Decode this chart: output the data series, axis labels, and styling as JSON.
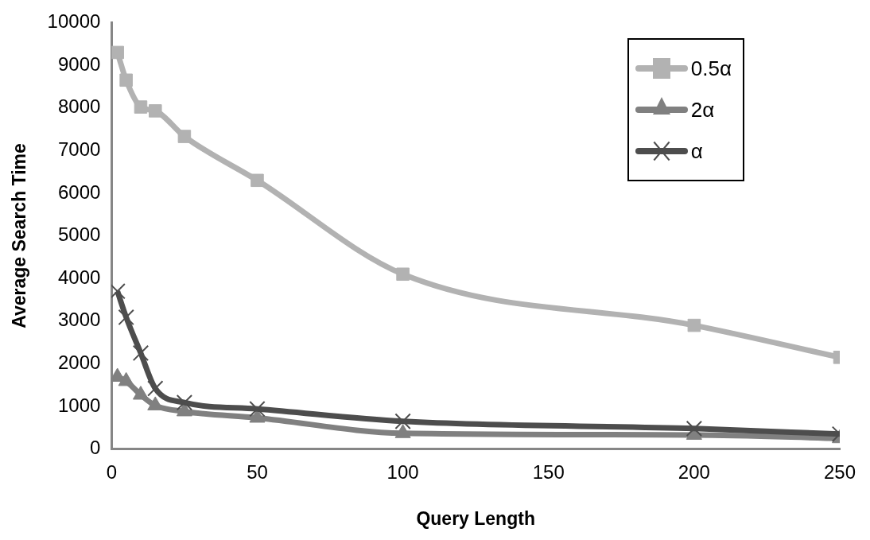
{
  "chart_data": {
    "type": "line",
    "xlabel": "Query Length",
    "ylabel": "Average Search Time",
    "x": [
      2,
      5,
      10,
      15,
      25,
      50,
      100,
      200,
      250
    ],
    "xlim": [
      0,
      250
    ],
    "xticks": [
      0,
      50,
      100,
      150,
      200,
      250
    ],
    "ylim": [
      0,
      10000
    ],
    "yticks": [
      0,
      1000,
      2000,
      3000,
      4000,
      5000,
      6000,
      7000,
      8000,
      9000,
      10000
    ],
    "grid": false,
    "legend": "top right",
    "series": [
      {
        "name": "0.5α",
        "color": "#b2b2b2",
        "marker": "square",
        "values": [
          9300,
          8650,
          8020,
          7930,
          7330,
          6300,
          4100,
          2900,
          2150
        ]
      },
      {
        "name": "2α",
        "color": "#808080",
        "marker": "triangle",
        "values": [
          1690,
          1590,
          1270,
          1020,
          880,
          730,
          370,
          330,
          250
        ]
      },
      {
        "name": "α",
        "color": "#4d4d4d",
        "marker": "cross",
        "values": [
          3700,
          3090,
          2250,
          1420,
          1090,
          940,
          650,
          480,
          350
        ]
      }
    ]
  }
}
